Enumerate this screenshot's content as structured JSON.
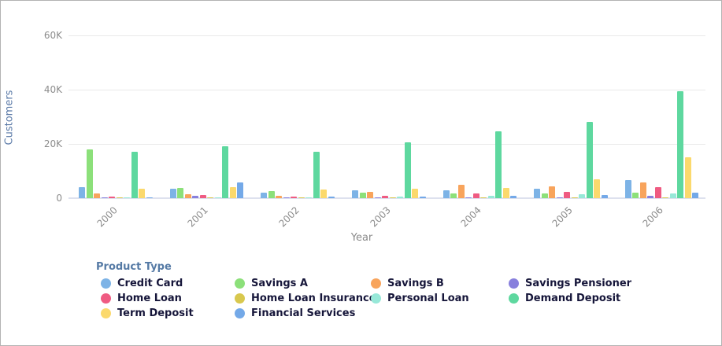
{
  "chart_data": {
    "type": "bar",
    "title": "",
    "xlabel": "Year",
    "ylabel": "Customers",
    "legend_title": "Product Type",
    "legend_position": "bottom",
    "grid": true,
    "ylim": [
      0,
      60000
    ],
    "yticks": [
      {
        "value": 0,
        "label": "0"
      },
      {
        "value": 20000,
        "label": "20K"
      },
      {
        "value": 40000,
        "label": "40K"
      },
      {
        "value": 60000,
        "label": "60K"
      }
    ],
    "categories": [
      "2000",
      "2001",
      "2002",
      "2003",
      "2004",
      "2005",
      "2006"
    ],
    "series": [
      {
        "name": "Credit Card",
        "color": "#7db3e6",
        "values": [
          4000,
          3500,
          2100,
          2900,
          3000,
          3500,
          6700
        ]
      },
      {
        "name": "Savings A",
        "color": "#8ce07a",
        "values": [
          18000,
          3800,
          2600,
          2100,
          1600,
          1700,
          2000
        ]
      },
      {
        "name": "Savings B",
        "color": "#f8a45c",
        "values": [
          1700,
          1500,
          900,
          2300,
          5000,
          4400,
          5800
        ]
      },
      {
        "name": "Savings Pensioner",
        "color": "#8880dd",
        "values": [
          300,
          900,
          200,
          200,
          200,
          300,
          900
        ]
      },
      {
        "name": "Home Loan",
        "color": "#ef5b82",
        "values": [
          600,
          1200,
          600,
          1000,
          1700,
          2300,
          4200
        ]
      },
      {
        "name": "Home Loan Insurance",
        "color": "#d8c84e",
        "values": [
          150,
          150,
          150,
          150,
          400,
          150,
          150
        ]
      },
      {
        "name": "Personal Loan",
        "color": "#97e8d8",
        "values": [
          150,
          200,
          150,
          500,
          900,
          1500,
          1600
        ]
      },
      {
        "name": "Demand Deposit",
        "color": "#5ed89f",
        "values": [
          17000,
          19000,
          17000,
          20700,
          24500,
          28200,
          39400
        ]
      },
      {
        "name": "Term Deposit",
        "color": "#fbd96d",
        "values": [
          3500,
          4100,
          3200,
          3500,
          3900,
          7000,
          15200
        ]
      },
      {
        "name": "Financial Services",
        "color": "#74a9e8",
        "values": [
          250,
          5900,
          450,
          650,
          900,
          1200,
          1900
        ]
      }
    ]
  },
  "colors": {
    "grid": "#eaeaea",
    "baseline": "#dde1ee",
    "tick_text": "#8c8c8c",
    "y_axis_title": "#5d7ca9",
    "x_axis_title": "#8a8a8a",
    "legend_title": "#557aa5",
    "legend_text": "#16163a",
    "frame_border": "#b3b3b3"
  }
}
